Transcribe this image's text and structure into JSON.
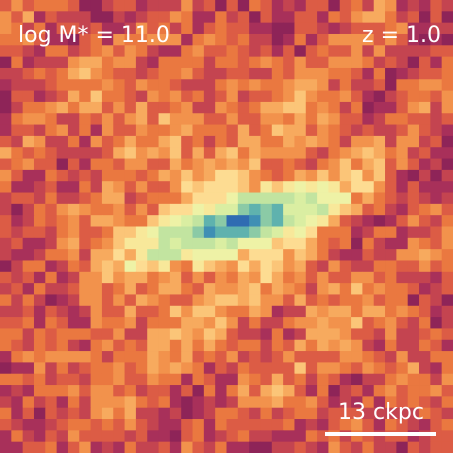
{
  "labels": {
    "mass": "log M* = 11.0",
    "redshift": "z = 1.0",
    "scale_bar": "13 ckpc"
  }
}
